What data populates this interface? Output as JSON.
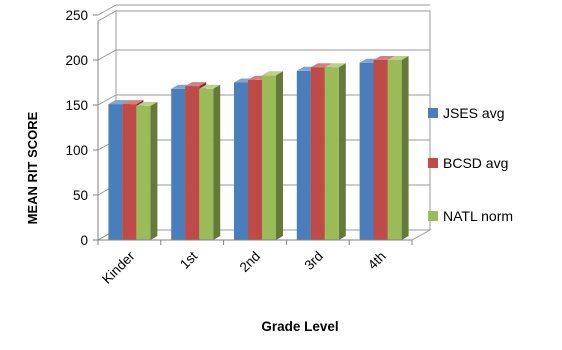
{
  "chart_data": {
    "type": "bar",
    "categories": [
      "Kinder",
      "1st",
      "2nd",
      "3rd",
      "4th"
    ],
    "series": [
      {
        "name": "JSES avg",
        "color": "#4A7EBB",
        "values": [
          151,
          168,
          175,
          188,
          197
        ]
      },
      {
        "name": "BCSD avg",
        "color": "#BE4B48",
        "values": [
          151,
          171,
          178,
          192,
          200
        ]
      },
      {
        "name": "NATL norm",
        "color": "#9BBB59",
        "values": [
          149,
          168,
          183,
          192,
          200
        ]
      }
    ],
    "xlabel": "Grade Level",
    "ylabel": "MEAN RIT SCORE",
    "ylim": [
      0,
      250
    ],
    "yticks": [
      0,
      50,
      100,
      150,
      200,
      250
    ],
    "grid": true,
    "legend": "right",
    "style": "3d-clustered-column"
  }
}
